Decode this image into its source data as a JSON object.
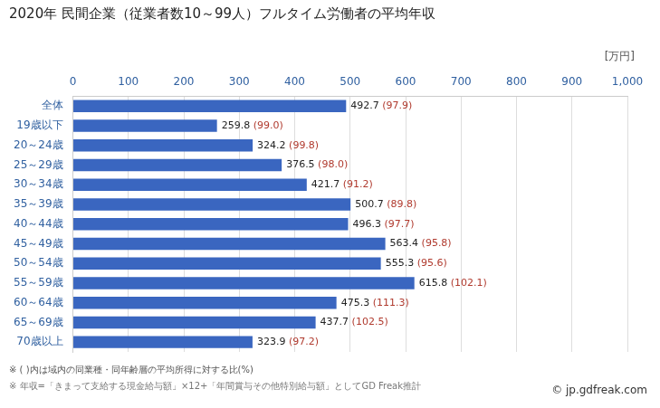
{
  "chart_data": {
    "type": "bar",
    "orientation": "horizontal",
    "title": "2020年 民間企業（従業者数10～99人）フルタイム労働者の平均年収",
    "x_label": "[万円]",
    "notes": [
      "※ ( )内は域内の同業種・同年齢層の平均所得に対する比(%)",
      "※ 年収=「きまって支給する現金給与額」×12+「年間賞与その他特別給与額」としてGD Freak推計"
    ],
    "credit": "© jp.gdfreak.com",
    "categories": [
      "全体",
      "19歳以下",
      "20～24歳",
      "25～29歳",
      "30～34歳",
      "35～39歳",
      "40～44歳",
      "45～49歳",
      "50～54歳",
      "55～59歳",
      "60～64歳",
      "65～69歳",
      "70歳以上"
    ],
    "values": [
      492.7,
      259.8,
      324.2,
      376.5,
      421.7,
      500.7,
      496.3,
      563.4,
      555.3,
      615.8,
      475.3,
      437.7,
      323.9
    ],
    "ratio_labels": [
      "(97.9)",
      "(99.0)",
      "(99.8)",
      "(98.0)",
      "(91.2)",
      "(89.8)",
      "(97.7)",
      "(95.8)",
      "(95.6)",
      "(102.1)",
      "(111.3)",
      "(102.5)",
      "(97.2)"
    ],
    "color": "#3a66c0",
    "ratio_color": "#b03a2e",
    "xlim": [
      0,
      1000
    ],
    "xticks": [
      0,
      100,
      200,
      300,
      400,
      500,
      600,
      700,
      800,
      900,
      1000
    ],
    "grid": true,
    "data_labels": true
  }
}
